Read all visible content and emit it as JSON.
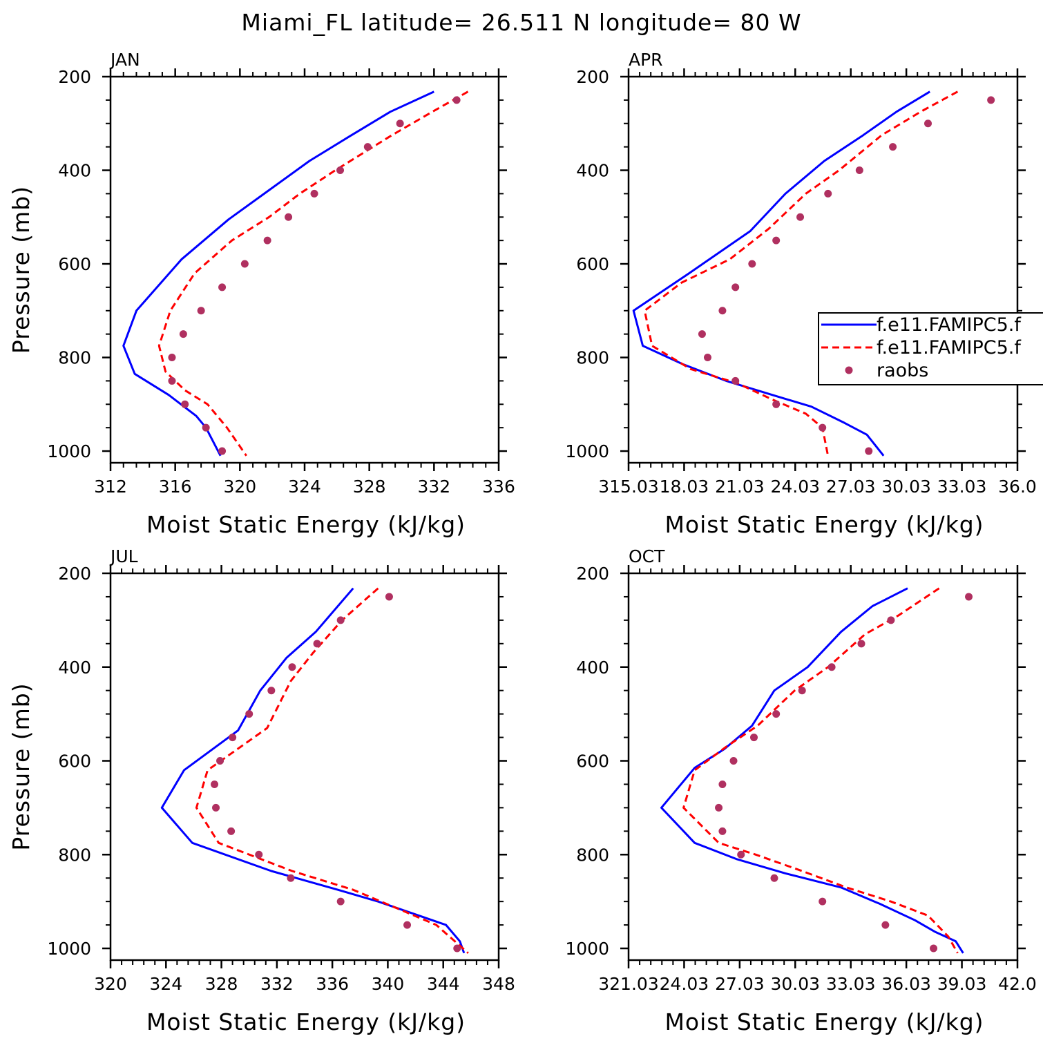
{
  "figure": {
    "title": "Miami_FL  latitude= 26.511 N longitude= 80 W",
    "colors": {
      "model1": "#0000ff",
      "model2": "#ff0000",
      "obs": "#b03060",
      "axes": "#000000"
    }
  },
  "legend": {
    "entries": [
      {
        "label": "f.e11.FAMIPC5.f",
        "style": "solid",
        "color": "#0000ff"
      },
      {
        "label": "f.e11.FAMIPC5.f",
        "style": "dashed",
        "color": "#ff0000"
      },
      {
        "label": "raobs",
        "style": "marker",
        "color": "#b03060"
      }
    ]
  },
  "chart_data": [
    {
      "type": "line",
      "panel": "JAN",
      "xlabel": "Moist Static Energy (kJ/kg)",
      "ylabel": "Pressure (mb)",
      "xlim": [
        312,
        336
      ],
      "ylim": [
        200,
        1000
      ],
      "xticks": [
        "312",
        "316",
        "320",
        "324",
        "328",
        "332",
        "336"
      ],
      "xtick_values": [
        312,
        316,
        320,
        324,
        328,
        332,
        336
      ],
      "yticks": [
        "200",
        "400",
        "600",
        "800",
        "1000"
      ],
      "series": [
        {
          "style": "solid",
          "color": "#0000ff",
          "points": [
            [
              332.0,
              232
            ],
            [
              329.3,
              275
            ],
            [
              326.9,
              325
            ],
            [
              324.3,
              380
            ],
            [
              321.5,
              450
            ],
            [
              319.3,
              505
            ],
            [
              316.4,
              590
            ],
            [
              313.6,
              700
            ],
            [
              312.8,
              775
            ],
            [
              313.5,
              835
            ],
            [
              315.6,
              880
            ],
            [
              317.3,
              925
            ],
            [
              317.9,
              950
            ],
            [
              318.8,
              1010
            ]
          ]
        },
        {
          "style": "dashed",
          "color": "#ff0000",
          "points": [
            [
              334.1,
              232
            ],
            [
              331.9,
              275
            ],
            [
              329.4,
              325
            ],
            [
              325.9,
              400
            ],
            [
              323.7,
              450
            ],
            [
              321.8,
              500
            ],
            [
              319.5,
              550
            ],
            [
              317.2,
              620
            ],
            [
              315.7,
              700
            ],
            [
              315.0,
              775
            ],
            [
              315.4,
              830
            ],
            [
              316.6,
              870
            ],
            [
              318.0,
              900
            ],
            [
              319.2,
              950
            ],
            [
              320.4,
              1010
            ]
          ]
        },
        {
          "style": "marker",
          "color": "#b03060",
          "points": [
            [
              333.4,
              250
            ],
            [
              329.9,
              300
            ],
            [
              327.9,
              350
            ],
            [
              326.2,
              400
            ],
            [
              324.6,
              450
            ],
            [
              323.0,
              500
            ],
            [
              321.7,
              550
            ],
            [
              320.3,
              600
            ],
            [
              318.9,
              650
            ],
            [
              317.6,
              700
            ],
            [
              316.5,
              750
            ],
            [
              315.8,
              800
            ],
            [
              315.8,
              850
            ],
            [
              316.6,
              900
            ],
            [
              317.9,
              950
            ],
            [
              318.9,
              1000
            ]
          ]
        }
      ]
    },
    {
      "type": "line",
      "panel": "APR",
      "xlabel": "Moist Static Energy (kJ/kg)",
      "ylabel": "",
      "xlim": [
        315.03,
        336.03
      ],
      "ylim": [
        200,
        1000
      ],
      "xticks": [
        "315.03",
        "18.03",
        "21.03",
        "24.03",
        "27.03",
        "30.03",
        "33.03",
        "36.0"
      ],
      "xtick_values": [
        315.03,
        318.03,
        321.03,
        324.03,
        327.03,
        330.03,
        333.03,
        336.03
      ],
      "yticks": [
        "200",
        "400",
        "600",
        "800",
        "1000"
      ],
      "series": [
        {
          "style": "solid",
          "color": "#0000ff",
          "points": [
            [
              331.3,
              232
            ],
            [
              329.5,
              275
            ],
            [
              327.7,
              325
            ],
            [
              325.6,
              380
            ],
            [
              323.5,
              450
            ],
            [
              321.6,
              530
            ],
            [
              318.3,
              620
            ],
            [
              315.3,
              700
            ],
            [
              315.8,
              775
            ],
            [
              318.0,
              815
            ],
            [
              320.3,
              850
            ],
            [
              322.8,
              880
            ],
            [
              324.9,
              905
            ],
            [
              326.7,
              940
            ],
            [
              327.9,
              965
            ],
            [
              328.8,
              1010
            ]
          ]
        },
        {
          "style": "dashed",
          "color": "#ff0000",
          "points": [
            [
              332.8,
              232
            ],
            [
              330.8,
              275
            ],
            [
              328.7,
              325
            ],
            [
              326.4,
              400
            ],
            [
              324.6,
              450
            ],
            [
              322.6,
              525
            ],
            [
              320.5,
              590
            ],
            [
              317.9,
              640
            ],
            [
              315.9,
              700
            ],
            [
              316.3,
              775
            ],
            [
              318.4,
              825
            ],
            [
              320.9,
              855
            ],
            [
              322.8,
              890
            ],
            [
              324.6,
              920
            ],
            [
              325.5,
              950
            ],
            [
              325.8,
              1010
            ]
          ]
        },
        {
          "style": "marker",
          "color": "#b03060",
          "points": [
            [
              334.6,
              250
            ],
            [
              331.2,
              300
            ],
            [
              329.3,
              350
            ],
            [
              327.5,
              400
            ],
            [
              325.8,
              450
            ],
            [
              324.3,
              500
            ],
            [
              323.0,
              550
            ],
            [
              321.7,
              600
            ],
            [
              320.8,
              650
            ],
            [
              320.1,
              700
            ],
            [
              319.0,
              750
            ],
            [
              319.3,
              800
            ],
            [
              320.8,
              850
            ],
            [
              323.0,
              900
            ],
            [
              325.5,
              950
            ],
            [
              328.0,
              1000
            ]
          ]
        }
      ]
    },
    {
      "type": "line",
      "panel": "JUL",
      "xlabel": "Moist Static Energy (kJ/kg)",
      "ylabel": "Pressure (mb)",
      "xlim": [
        320,
        348
      ],
      "ylim": [
        200,
        1000
      ],
      "xticks": [
        "320",
        "324",
        "328",
        "332",
        "336",
        "340",
        "344",
        "348"
      ],
      "xtick_values": [
        320,
        324,
        328,
        332,
        336,
        340,
        344,
        348
      ],
      "yticks": [
        "200",
        "400",
        "600",
        "800",
        "1000"
      ],
      "series": [
        {
          "style": "solid",
          "color": "#0000ff",
          "points": [
            [
              337.5,
              232
            ],
            [
              334.8,
              325
            ],
            [
              332.7,
              380
            ],
            [
              330.8,
              450
            ],
            [
              329.2,
              535
            ],
            [
              325.3,
              620
            ],
            [
              323.7,
              700
            ],
            [
              325.9,
              775
            ],
            [
              331.6,
              835
            ],
            [
              336.4,
              875
            ],
            [
              339.3,
              900
            ],
            [
              344.2,
              950
            ],
            [
              345.2,
              985
            ],
            [
              345.5,
              1010
            ]
          ]
        },
        {
          "style": "dashed",
          "color": "#ff0000",
          "points": [
            [
              339.3,
              232
            ],
            [
              336.7,
              300
            ],
            [
              334.6,
              370
            ],
            [
              333.0,
              430
            ],
            [
              331.3,
              530
            ],
            [
              327.0,
              620
            ],
            [
              326.2,
              700
            ],
            [
              327.8,
              775
            ],
            [
              333.1,
              835
            ],
            [
              337.5,
              875
            ],
            [
              340.7,
              915
            ],
            [
              343.5,
              950
            ],
            [
              345.8,
              1010
            ]
          ]
        },
        {
          "style": "marker",
          "color": "#b03060",
          "points": [
            [
              340.1,
              250
            ],
            [
              336.6,
              300
            ],
            [
              334.9,
              350
            ],
            [
              333.1,
              400
            ],
            [
              331.6,
              450
            ],
            [
              330.0,
              500
            ],
            [
              328.8,
              550
            ],
            [
              327.9,
              600
            ],
            [
              327.5,
              650
            ],
            [
              327.6,
              700
            ],
            [
              328.7,
              750
            ],
            [
              330.7,
              800
            ],
            [
              333.0,
              850
            ],
            [
              336.6,
              900
            ],
            [
              341.4,
              950
            ],
            [
              345.0,
              1000
            ]
          ]
        }
      ]
    },
    {
      "type": "line",
      "panel": "OCT",
      "xlabel": "Moist Static Energy (kJ/kg)",
      "ylabel": "",
      "xlim": [
        321.03,
        342.03
      ],
      "ylim": [
        200,
        1000
      ],
      "xticks": [
        "321.03",
        "24.03",
        "27.03",
        "30.03",
        "33.03",
        "36.03",
        "39.03",
        "42.0"
      ],
      "xtick_values": [
        321.03,
        324.03,
        327.03,
        330.03,
        333.03,
        336.03,
        339.03,
        342.03
      ],
      "yticks": [
        "200",
        "400",
        "600",
        "800",
        "1000"
      ],
      "series": [
        {
          "style": "solid",
          "color": "#0000ff",
          "points": [
            [
              336.1,
              232
            ],
            [
              334.2,
              270
            ],
            [
              332.5,
              325
            ],
            [
              330.7,
              400
            ],
            [
              328.9,
              450
            ],
            [
              327.7,
              525
            ],
            [
              326.2,
              575
            ],
            [
              324.6,
              615
            ],
            [
              322.8,
              700
            ],
            [
              324.6,
              775
            ],
            [
              326.9,
              810
            ],
            [
              329.5,
              840
            ],
            [
              332.5,
              870
            ],
            [
              334.6,
              905
            ],
            [
              336.5,
              940
            ],
            [
              337.6,
              965
            ],
            [
              338.7,
              985
            ],
            [
              339.1,
              1010
            ]
          ]
        },
        {
          "style": "dashed",
          "color": "#ff0000",
          "points": [
            [
              337.8,
              232
            ],
            [
              335.6,
              290
            ],
            [
              333.8,
              330
            ],
            [
              331.8,
              400
            ],
            [
              330.0,
              450
            ],
            [
              328.0,
              525
            ],
            [
              326.3,
              570
            ],
            [
              324.6,
              620
            ],
            [
              324.0,
              700
            ],
            [
              325.9,
              775
            ],
            [
              327.9,
              800
            ],
            [
              330.4,
              835
            ],
            [
              332.8,
              870
            ],
            [
              335.2,
              900
            ],
            [
              337.2,
              930
            ],
            [
              338.3,
              975
            ],
            [
              338.8,
              1010
            ]
          ]
        },
        {
          "style": "marker",
          "color": "#b03060",
          "points": [
            [
              339.4,
              250
            ],
            [
              335.2,
              300
            ],
            [
              333.6,
              350
            ],
            [
              332.0,
              400
            ],
            [
              330.4,
              450
            ],
            [
              329.0,
              500
            ],
            [
              327.8,
              550
            ],
            [
              326.7,
              600
            ],
            [
              326.1,
              650
            ],
            [
              325.9,
              700
            ],
            [
              326.1,
              750
            ],
            [
              327.1,
              800
            ],
            [
              328.9,
              850
            ],
            [
              331.5,
              900
            ],
            [
              334.9,
              950
            ],
            [
              337.5,
              1000
            ]
          ]
        }
      ]
    }
  ]
}
